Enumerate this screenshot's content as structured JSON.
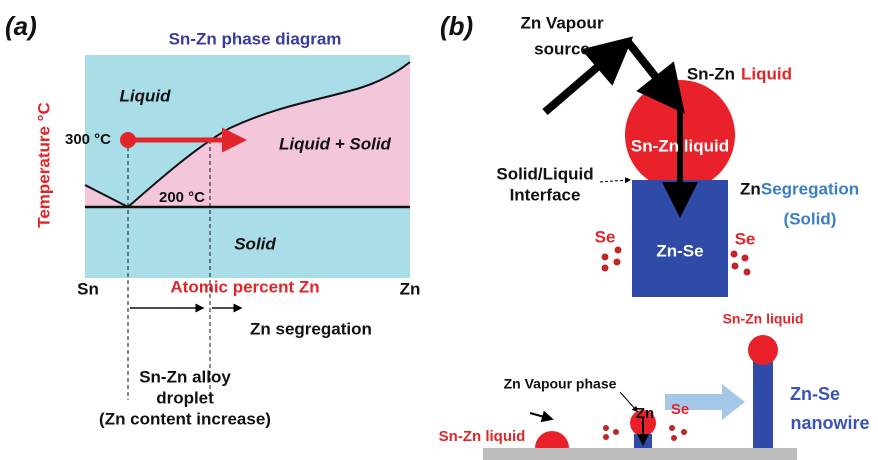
{
  "panel_a": {
    "label": "(a)",
    "title": "Sn-Zn phase diagram",
    "y_axis": "Temperature °C",
    "regions": {
      "liquid": "Liquid",
      "mixed": "Liquid + Solid",
      "solid": "Solid"
    },
    "temp_high": "300 °C",
    "temp_eutectic": "200 °C",
    "x_start": "Sn",
    "x_end": "Zn",
    "x_axis": "Atomic percent Zn",
    "segregation": "Zn segregation",
    "droplet_note": [
      "Sn-Zn alloy",
      "droplet",
      "(Zn content increase)"
    ]
  },
  "panel_b": {
    "label": "(b)",
    "source": [
      "Zn Vapour",
      "source"
    ],
    "liquid_title": [
      "Sn-Zn",
      "Liquid"
    ],
    "droplet": "Sn-Zn liquid",
    "interface": [
      "Solid/Liquid",
      "Interface"
    ],
    "segregation": [
      "Zn",
      "Segregation",
      "(Solid)"
    ],
    "se_left": "Se",
    "se_right": "Se",
    "crystal": "Zn-Se",
    "bottom": {
      "cap_label": "Sn-Zn liquid",
      "vapour": "Zn Vapour phase",
      "droplet_label": "Sn-Zn liquid",
      "zn": "Zn",
      "se": "Se",
      "wire": [
        "Zn-Se",
        "nanowire"
      ]
    }
  }
}
